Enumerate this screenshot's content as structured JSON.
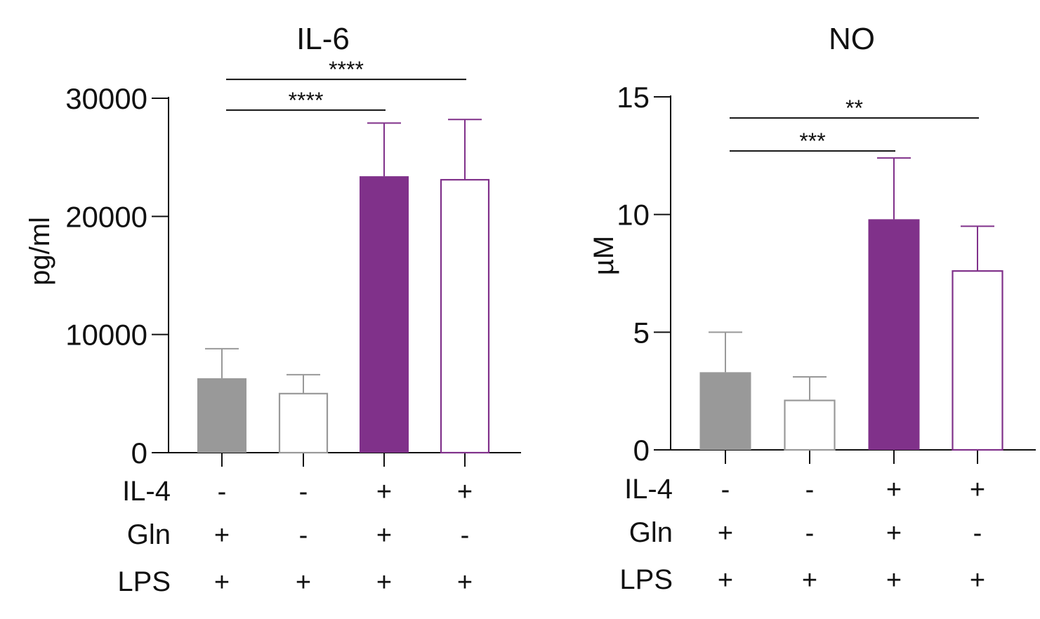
{
  "chart_data": [
    {
      "type": "bar",
      "title": "IL-6",
      "ylabel": "pg/ml",
      "ylim": [
        0,
        30000
      ],
      "yticks": [
        "0",
        "10000",
        "20000",
        "30000"
      ],
      "ytick_values": [
        0,
        10000,
        20000,
        30000
      ],
      "bars": [
        {
          "value": 6300,
          "error": 2500,
          "fill": "#999999",
          "stroke": "#999999"
        },
        {
          "value": 5000,
          "error": 1600,
          "fill": "#ffffff",
          "stroke": "#999999"
        },
        {
          "value": 23400,
          "error": 4500,
          "fill": "#80318a",
          "stroke": "#80318a"
        },
        {
          "value": 23100,
          "error": 5100,
          "fill": "#ffffff",
          "stroke": "#80318a"
        }
      ],
      "conditions": [
        {
          "label": "IL-4",
          "values": [
            "-",
            "-",
            "+",
            "+"
          ]
        },
        {
          "label": "Gln",
          "values": [
            "+",
            "-",
            "+",
            "-"
          ]
        },
        {
          "label": "LPS",
          "values": [
            "+",
            "+",
            "+",
            "+"
          ]
        }
      ],
      "significance": [
        {
          "from": 0,
          "to": 2,
          "label": "****",
          "y": 29000
        },
        {
          "from": 0,
          "to": 3,
          "label": "****",
          "y": 31600
        }
      ]
    },
    {
      "type": "bar",
      "title": "NO",
      "ylabel": "µM",
      "ylim": [
        0,
        15
      ],
      "yticks": [
        "0",
        "5",
        "10",
        "15"
      ],
      "ytick_values": [
        0,
        5,
        10,
        15
      ],
      "bars": [
        {
          "value": 3.3,
          "error": 1.7,
          "fill": "#999999",
          "stroke": "#999999"
        },
        {
          "value": 2.1,
          "error": 1.0,
          "fill": "#ffffff",
          "stroke": "#999999"
        },
        {
          "value": 9.8,
          "error": 2.6,
          "fill": "#80318a",
          "stroke": "#80318a"
        },
        {
          "value": 7.6,
          "error": 1.9,
          "fill": "#ffffff",
          "stroke": "#80318a"
        }
      ],
      "conditions": [
        {
          "label": "IL-4",
          "values": [
            "-",
            "-",
            "+",
            "+"
          ]
        },
        {
          "label": "Gln",
          "values": [
            "+",
            "-",
            "+",
            "-"
          ]
        },
        {
          "label": "LPS",
          "values": [
            "+",
            "+",
            "+",
            "+"
          ]
        }
      ],
      "significance": [
        {
          "from": 0,
          "to": 2,
          "label": "***",
          "y": 12.7
        },
        {
          "from": 0,
          "to": 3,
          "label": "**",
          "y": 14.1
        }
      ]
    }
  ]
}
